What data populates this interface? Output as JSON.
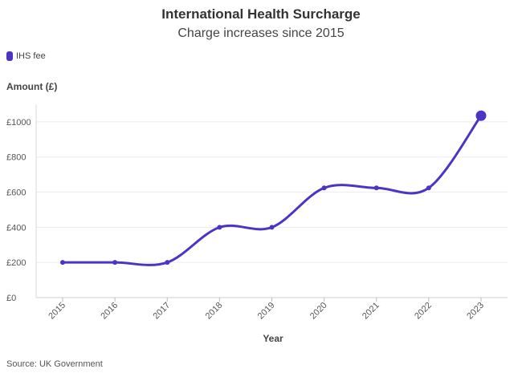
{
  "chart_data": {
    "type": "line",
    "title": "International Health Surcharge",
    "subtitle": "Charge increases since 2015",
    "legend": "IHS fee",
    "ylabel": "Amount (£)",
    "xlabel": "Year",
    "categories": [
      "2015",
      "2016",
      "2017",
      "2018",
      "2019",
      "2020",
      "2021",
      "2022",
      "2023"
    ],
    "values": [
      200,
      200,
      200,
      400,
      400,
      624,
      624,
      624,
      1035
    ],
    "ylim": [
      0,
      1100
    ],
    "yticks": [
      0,
      200,
      400,
      600,
      800,
      1000
    ],
    "ytick_labels": [
      "£0",
      "£200",
      "£400",
      "£600",
      "£800",
      "£1000"
    ],
    "color": "#4a35c4",
    "source": "Source: UK Government"
  }
}
